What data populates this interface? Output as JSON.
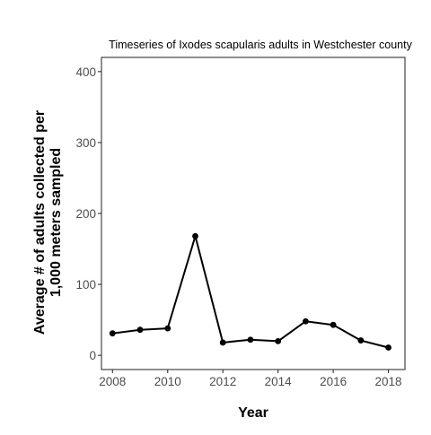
{
  "chart_data": {
    "type": "line",
    "title": "Timeseries of Ixodes scapularis adults in Westchester county",
    "xlabel": "Year",
    "ylabel": "Average # of adults collected per 1,000 meters sampled",
    "xlim": [
      2007.6,
      2018.6
    ],
    "ylim": [
      -20,
      420
    ],
    "xticks": [
      2008,
      2010,
      2012,
      2014,
      2016,
      2018
    ],
    "yticks": [
      0,
      100,
      200,
      300,
      400
    ],
    "grid": false,
    "legend": "none",
    "series": [
      {
        "x": [
          2008,
          2009,
          2010,
          2011,
          2012,
          2013,
          2014,
          2015,
          2016,
          2017,
          2018
        ],
        "y": [
          31,
          36,
          38,
          168,
          18,
          22,
          20,
          48,
          43,
          21,
          11
        ],
        "color": "#000000"
      }
    ]
  }
}
